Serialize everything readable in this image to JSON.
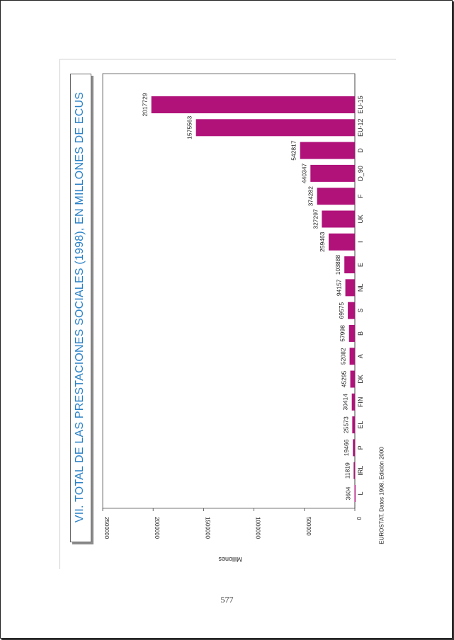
{
  "title": "VII. TOTAL DE LAS PRESTACIONES SOCIALES (1998), EN MILLONES DE ECUS",
  "page_number": "577",
  "chart_data": {
    "type": "bar",
    "orientation": "horizontal",
    "title": "VII. TOTAL DE LAS PRESTACIONES SOCIALES (1998), EN MILLONES DE ECUS",
    "xlabel": "",
    "ylabel": "Millones",
    "source": "EUROSTAT. Datos 1998. Edición 2000",
    "categories": [
      "L",
      "IRL",
      "P",
      "EL",
      "FIN",
      "DK",
      "A",
      "B",
      "S",
      "NL",
      "E",
      "I",
      "UK",
      "F",
      "D_90",
      "D",
      "EU-12",
      "EU-15"
    ],
    "values": [
      3604,
      11819,
      19466,
      25573,
      30414,
      45295,
      52082,
      57998,
      69575,
      94157,
      103888,
      259463,
      327297,
      374282,
      440347,
      542817,
      1575563,
      2017729
    ],
    "value_labels": [
      "3604",
      "11819",
      "19466",
      "25573",
      "30414",
      "45295",
      "52082",
      "57998",
      "69575",
      "94157",
      "103888",
      "259463",
      "327297",
      "374282",
      "440347",
      "542817",
      "1575563",
      "2017729"
    ],
    "ticks": [
      0,
      500000,
      1000000,
      1500000,
      2000000,
      2500000
    ],
    "tick_labels": [
      "0",
      "500000",
      "1000000",
      "1500000",
      "2000000",
      "2500000"
    ],
    "ylim": [
      0,
      2500000
    ],
    "bar_color": "#b0127a",
    "grid": false,
    "legend": "none"
  }
}
